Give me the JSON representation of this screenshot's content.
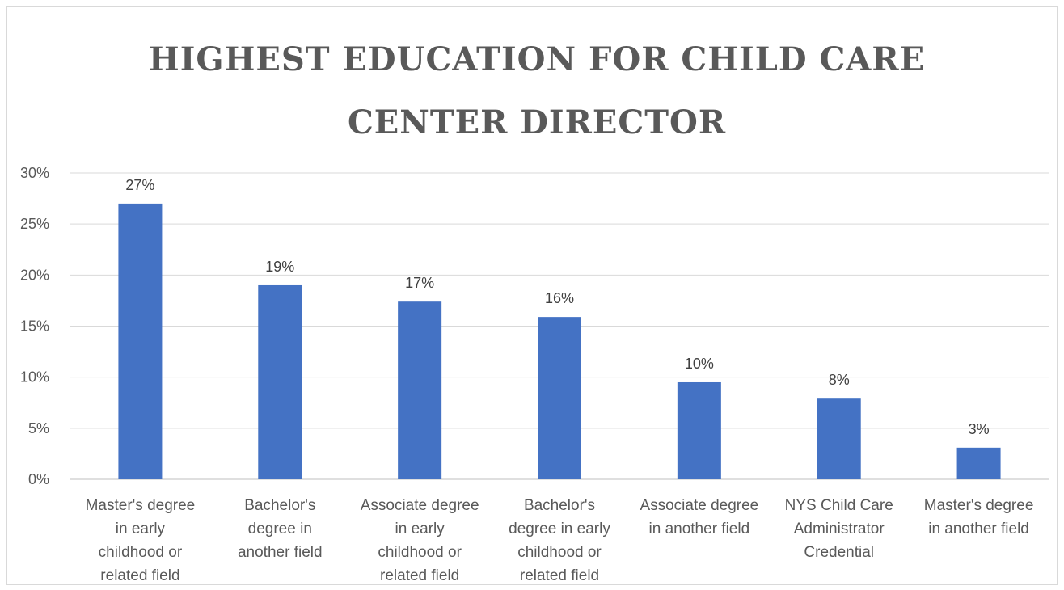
{
  "chart_data": {
    "type": "bar",
    "title": "HIGHEST EDUCATION FOR CHILD CARE CENTER DIRECTOR",
    "title_lines": [
      "HIGHEST EDUCATION FOR CHILD CARE",
      "CENTER DIRECTOR"
    ],
    "categories": [
      "Master's degree in early childhood or related field",
      "Bachelor's degree in another field",
      "Associate degree in early childhood or related field",
      "Bachelor's degree in early childhood or related field",
      "Associate degree in another field",
      "NYS Child Care Administrator Credential",
      "Master's degree in another field"
    ],
    "category_label_lines": [
      [
        "Master's degree",
        "in early",
        "childhood or",
        "related field"
      ],
      [
        "Bachelor's",
        "degree in",
        "another field"
      ],
      [
        "Associate degree",
        "in early",
        "childhood or",
        "related field"
      ],
      [
        "Bachelor's",
        "degree in early",
        "childhood or",
        "related field"
      ],
      [
        "Associate degree",
        "in another field"
      ],
      [
        "NYS Child Care",
        "Administrator",
        "Credential"
      ],
      [
        "Master's degree",
        "in another field"
      ]
    ],
    "values": [
      27,
      19,
      17.4,
      15.9,
      9.5,
      7.9,
      3.1
    ],
    "data_labels": [
      "27%",
      "19%",
      "17%",
      "16%",
      "10%",
      "8%",
      "3%"
    ],
    "ylim": [
      0,
      30
    ],
    "yticks": [
      0,
      5,
      10,
      15,
      20,
      25,
      30
    ],
    "ytick_labels": [
      "0%",
      "5%",
      "10%",
      "15%",
      "20%",
      "25%",
      "30%"
    ],
    "xlabel": "",
    "ylabel": "",
    "grid": true,
    "legend": "none",
    "bar_color": "#4472c4"
  }
}
